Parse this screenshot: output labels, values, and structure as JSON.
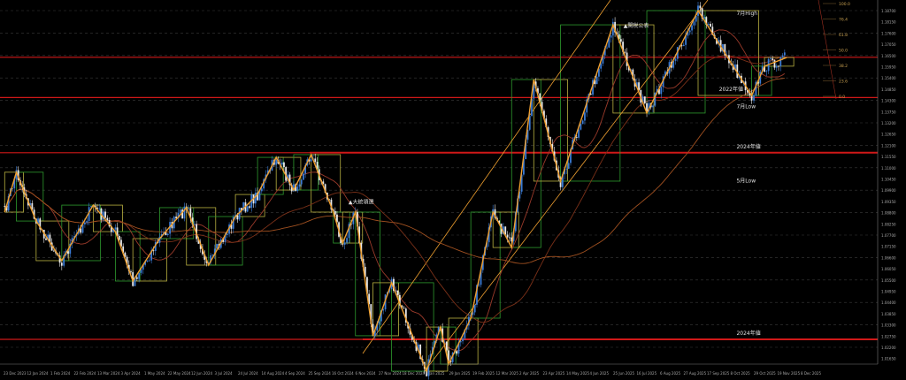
{
  "colors": {
    "background": "#000000",
    "bull": "#3a7bd5",
    "bear": "#e8e8e8",
    "zigzag": "#f0a030",
    "level": "#d01818",
    "box_yellow": "#b8b040",
    "box_green": "#2e9a2e",
    "grid": "#3a3a3a",
    "axis_text": "#aaaaaa"
  },
  "chart_data": {
    "type": "candlestick",
    "ylim": [
      1.015,
      1.19
    ],
    "xlim": [
      "2023-12-20",
      "2026-01-02"
    ],
    "grid": true,
    "swings": [
      {
        "date": "2023-12-24",
        "price": 1.09
      },
      {
        "date": "2024-01-03",
        "price": 1.1088
      },
      {
        "date": "2024-01-20",
        "price": 1.0858
      },
      {
        "date": "2024-02-11",
        "price": 1.0671
      },
      {
        "date": "2024-03-09",
        "price": 1.0933
      },
      {
        "date": "2024-03-28",
        "price": 1.0808
      },
      {
        "date": "2024-04-12",
        "price": 1.0575
      },
      {
        "date": "2024-05-05",
        "price": 1.0775
      },
      {
        "date": "2024-05-28",
        "price": 1.0921
      },
      {
        "date": "2024-06-16",
        "price": 1.065
      },
      {
        "date": "2024-07-09",
        "price": 1.0879
      },
      {
        "date": "2024-07-28",
        "price": 1.0983
      },
      {
        "date": "2024-08-13",
        "price": 1.1158
      },
      {
        "date": "2024-08-28",
        "price": 1.1004
      },
      {
        "date": "2024-09-12",
        "price": 1.1171
      },
      {
        "date": "2024-10-01",
        "price": 1.09
      },
      {
        "date": "2024-10-09",
        "price": 1.0754
      },
      {
        "date": "2024-10-20",
        "price": 1.09
      },
      {
        "date": "2024-11-04",
        "price": 1.0317
      },
      {
        "date": "2024-11-20",
        "price": 1.0567
      },
      {
        "date": "2024-12-20",
        "price": 1.015
      },
      {
        "date": "2025-01-01",
        "price": 1.0358
      },
      {
        "date": "2025-01-08",
        "price": 1.0183
      },
      {
        "date": "2025-01-27",
        "price": 1.04
      },
      {
        "date": "2025-02-15",
        "price": 1.09
      },
      {
        "date": "2025-03-03",
        "price": 1.0733
      },
      {
        "date": "2025-03-22",
        "price": 1.1525
      },
      {
        "date": "2025-04-14",
        "price": 1.1046
      },
      {
        "date": "2025-05-29",
        "price": 1.1783
      },
      {
        "date": "2025-06-27",
        "price": 1.1367
      },
      {
        "date": "2025-08-10",
        "price": 1.185
      },
      {
        "date": "2025-09-25",
        "price": 1.145
      },
      {
        "date": "2025-10-06",
        "price": 1.1588
      },
      {
        "date": "2025-10-25",
        "price": 1.1629
      }
    ],
    "levels": [
      {
        "price": 1.163,
        "color": "#d01818"
      },
      {
        "price": 1.144,
        "color": "#d01818"
      },
      {
        "price": 1.118,
        "color": "#d01818"
      },
      {
        "price": 1.03,
        "color": "#d01818"
      }
    ],
    "annotations": [
      {
        "text": "7月High",
        "date": "2025-09-12",
        "price": 1.183
      },
      {
        "text": "7月Low",
        "date": "2025-09-12",
        "price": 1.139
      },
      {
        "text": "2022年値",
        "date": "2025-08-28",
        "price": 1.147
      },
      {
        "text": "2024年値",
        "date": "2025-09-12",
        "price": 1.12
      },
      {
        "text": "5月Low",
        "date": "2025-09-12",
        "price": 1.104
      },
      {
        "text": "2024年値",
        "date": "2025-09-12",
        "price": 1.032
      },
      {
        "text": "▲大統領選",
        "date": "2024-10-14",
        "price": 1.094
      },
      {
        "text": "▲関税公表",
        "date": "2025-06-07",
        "price": 1.177
      }
    ],
    "fib_labels": [
      "100.0",
      "76.4",
      "61.8",
      "50.0",
      "38.2",
      "23.6",
      "0.0"
    ],
    "y_ticks": [
      "1.18700",
      "1.18150",
      "1.17600",
      "1.17050",
      "1.16500",
      "1.15950",
      "1.15400",
      "1.14850",
      "1.14300",
      "1.13750",
      "1.13200",
      "1.12650",
      "1.12100",
      "1.11550",
      "1.11000",
      "1.10450",
      "1.09900",
      "1.09350",
      "1.08800",
      "1.08250",
      "1.07700",
      "1.07150",
      "1.06600",
      "1.06050",
      "1.05500",
      "1.04950",
      "1.04400",
      "1.03850",
      "1.03300",
      "1.02750",
      "1.02200",
      "1.01650"
    ],
    "x_ticks": [
      "23 Dec 2023",
      "12 Jan 2024",
      "1 Feb 2024",
      "22 Feb 2024",
      "13 Mar 2024",
      "3 Apr 2024",
      "1 May 2024",
      "22 May 2024",
      "12 Jun 2024",
      "3 Jul 2024",
      "24 Jul 2024",
      "14 Aug 2024",
      "4 Sep 2024",
      "25 Sep 2024",
      "16 Oct 2024",
      "6 Nov 2024",
      "27 Nov 2024",
      "18 Dec 2024",
      "8 Jan 2025",
      "29 Jan 2025",
      "19 Feb 2025",
      "12 Mar 2025",
      "2 Apr 2025",
      "23 Apr 2025",
      "14 May 2025",
      "4 Jun 2025",
      "25 Jun 2025",
      "16 Jul 2025",
      "6 Aug 2025",
      "27 Aug 2025",
      "17 Sep 2025",
      "8 Oct 2025",
      "29 Oct 2025",
      "19 Nov 2025",
      "8 Dec 2025"
    ]
  }
}
